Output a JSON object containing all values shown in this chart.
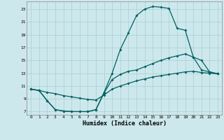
{
  "xlabel": "Humidex (Indice chaleur)",
  "background_color": "#cde8ec",
  "grid_color": "#a8cdd4",
  "line_color": "#006060",
  "xlim": [
    -0.5,
    23.5
  ],
  "ylim": [
    6.5,
    24.2
  ],
  "xticks": [
    0,
    1,
    2,
    3,
    4,
    5,
    6,
    7,
    8,
    9,
    10,
    11,
    12,
    13,
    14,
    15,
    16,
    17,
    18,
    19,
    20,
    21,
    22,
    23
  ],
  "yticks": [
    7,
    9,
    11,
    13,
    15,
    17,
    19,
    21,
    23
  ],
  "curve1_x": [
    0,
    1,
    2,
    3,
    4,
    5,
    6,
    7,
    8,
    9,
    10,
    11,
    12,
    13,
    14,
    15,
    16,
    17,
    18,
    19,
    20,
    21,
    22,
    23
  ],
  "curve1_y": [
    10.5,
    10.3,
    8.7,
    7.3,
    7.1,
    7.0,
    7.0,
    7.0,
    7.3,
    10.0,
    13.0,
    16.7,
    19.3,
    22.0,
    23.0,
    23.4,
    23.3,
    23.1,
    20.0,
    19.7,
    15.5,
    15.0,
    13.2,
    12.9
  ],
  "curve2_x": [
    0,
    1,
    2,
    3,
    4,
    5,
    6,
    7,
    8,
    9,
    10,
    11,
    12,
    13,
    14,
    15,
    16,
    17,
    18,
    19,
    20,
    21,
    22,
    23
  ],
  "curve2_y": [
    10.5,
    10.3,
    8.7,
    7.3,
    7.1,
    7.0,
    7.0,
    7.0,
    7.3,
    9.9,
    12.0,
    12.8,
    13.3,
    13.5,
    14.0,
    14.5,
    15.0,
    15.4,
    15.7,
    16.0,
    15.5,
    13.5,
    13.2,
    12.9
  ],
  "curve3_x": [
    0,
    1,
    2,
    3,
    4,
    5,
    6,
    7,
    8,
    9,
    10,
    11,
    12,
    13,
    14,
    15,
    16,
    17,
    18,
    19,
    20,
    21,
    22,
    23
  ],
  "curve3_y": [
    10.5,
    10.3,
    10.0,
    9.8,
    9.5,
    9.3,
    9.1,
    8.9,
    8.8,
    9.6,
    10.5,
    11.0,
    11.4,
    11.8,
    12.1,
    12.4,
    12.6,
    12.8,
    13.0,
    13.2,
    13.3,
    13.1,
    13.0,
    12.9
  ]
}
